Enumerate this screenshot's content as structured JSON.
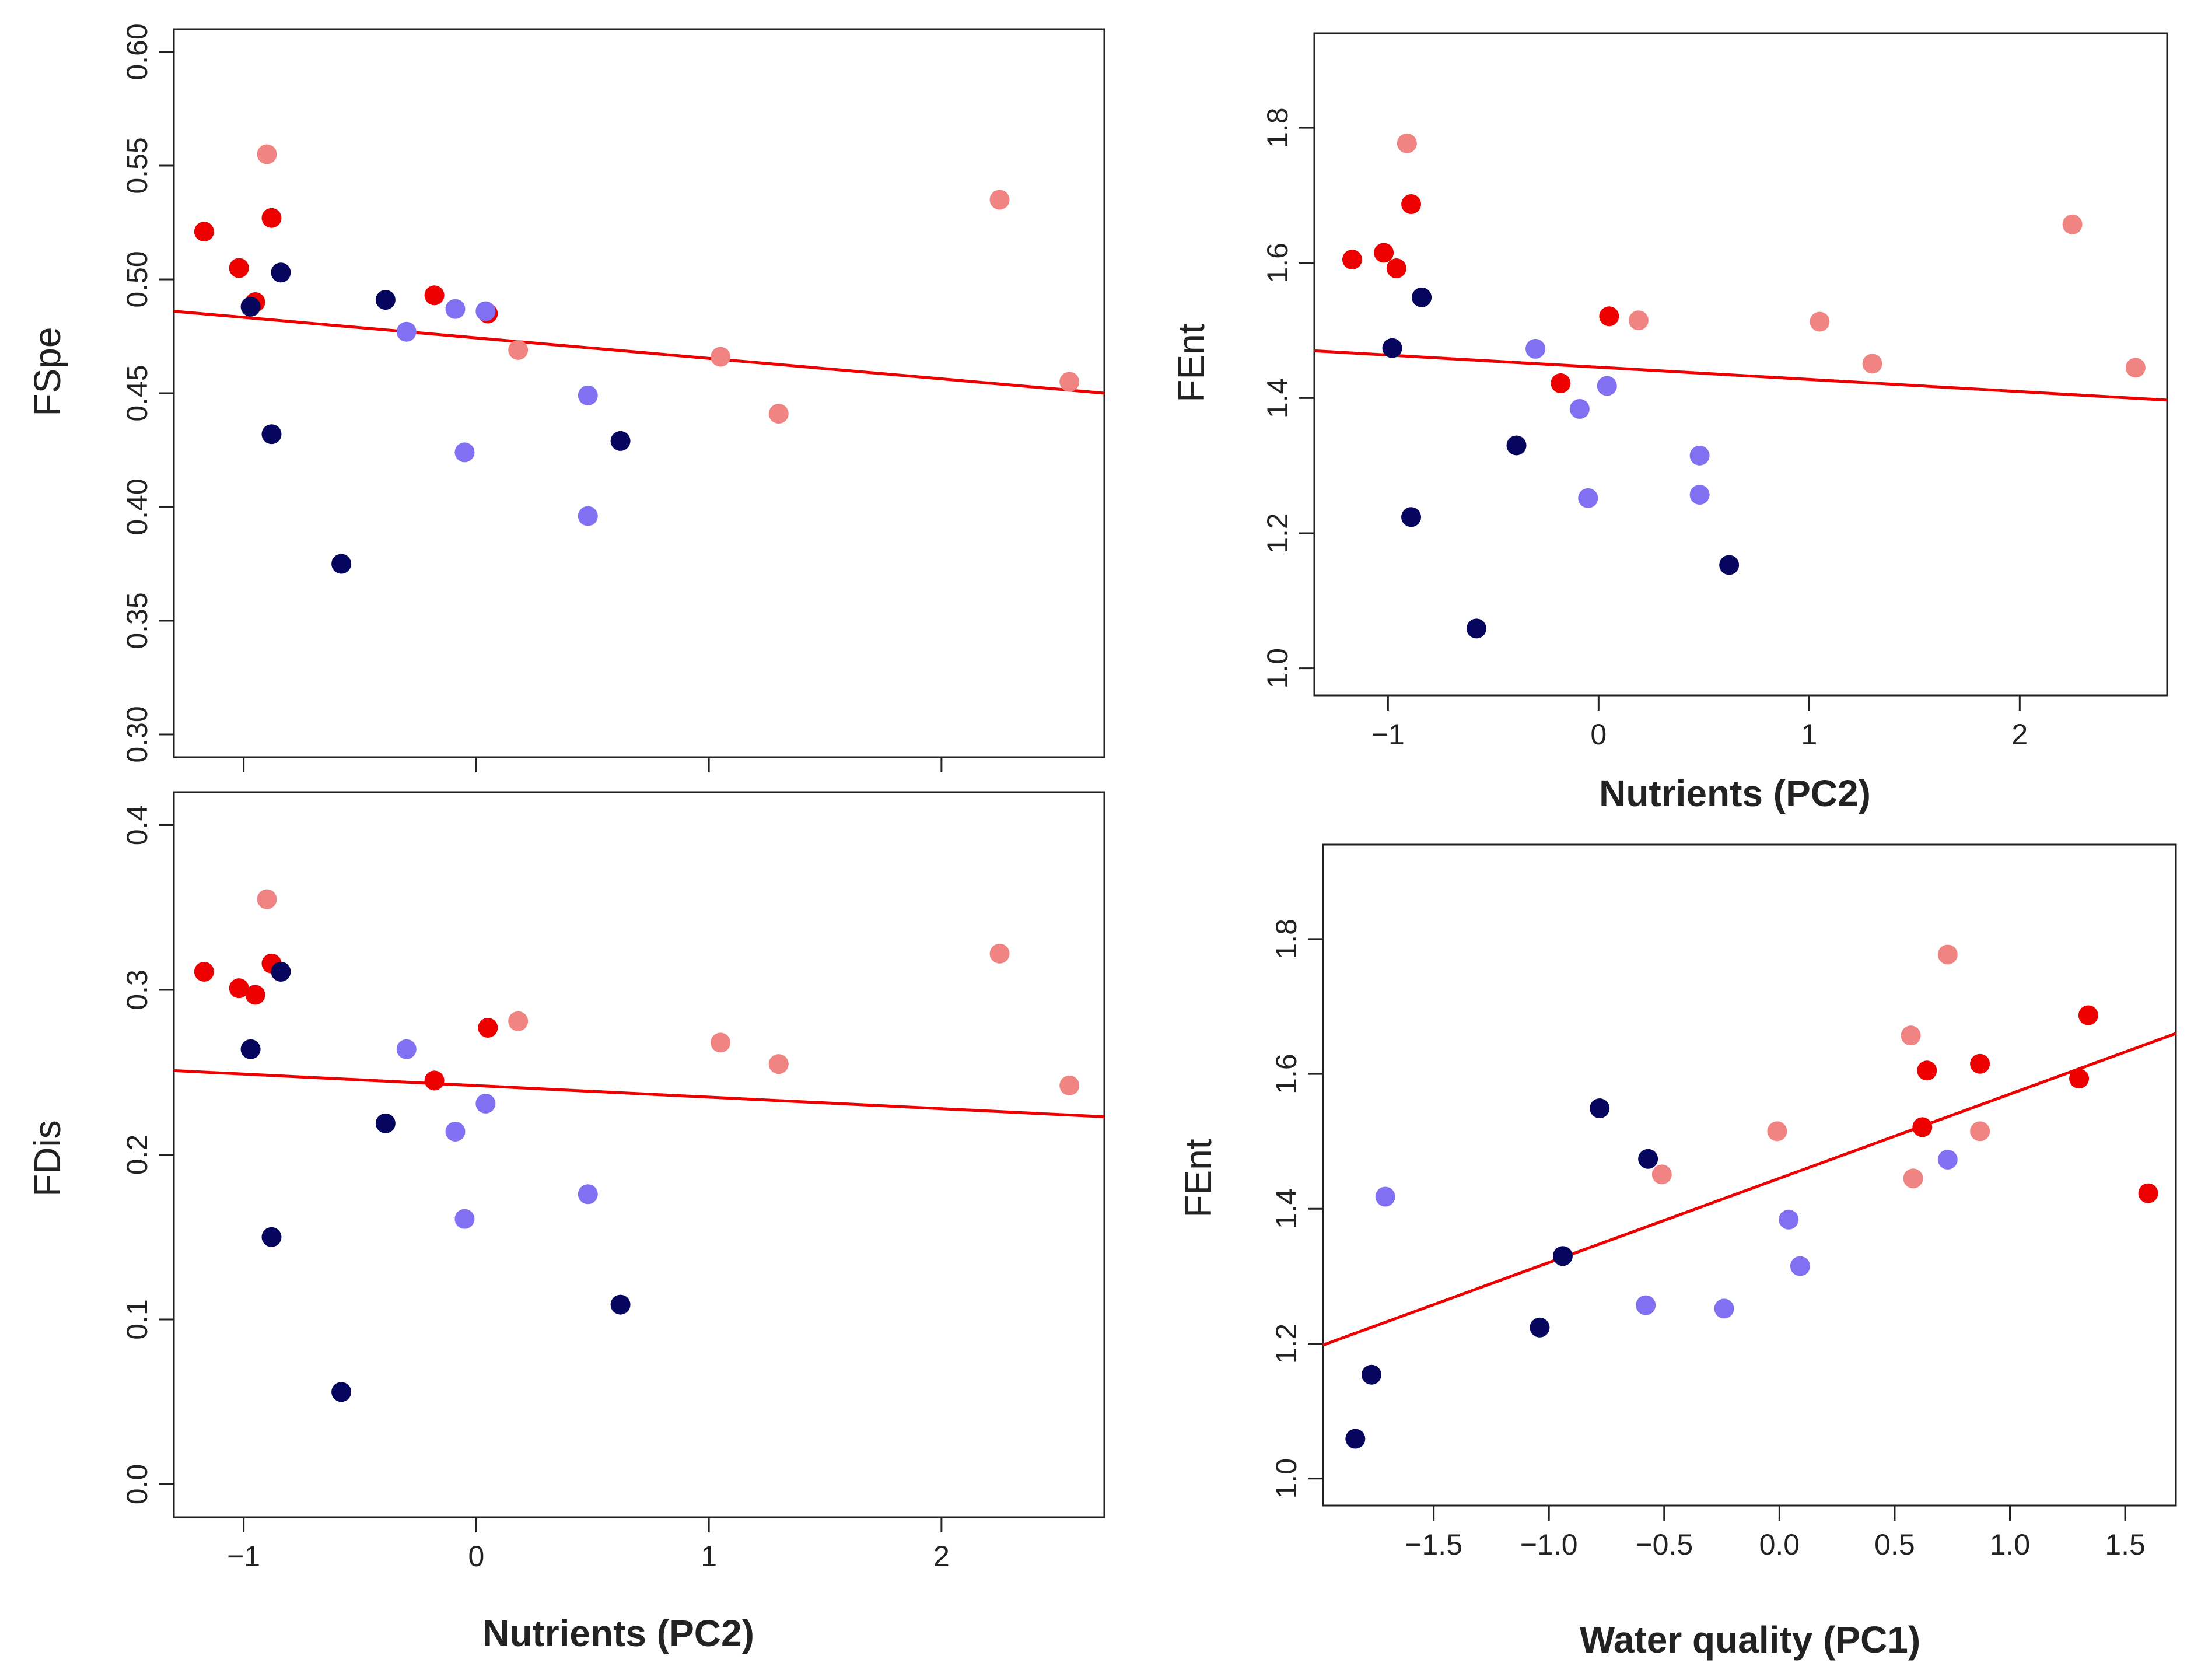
{
  "colors": {
    "red": "#EE0000",
    "pink": "#EF8482",
    "navy": "#06065E",
    "lavender": "#8171F2",
    "line": "#EE0000",
    "frame": "#222222"
  },
  "chart_data": [
    {
      "id": "fspe",
      "type": "scatter",
      "title": "",
      "xlabel": "",
      "ylabel": "FSpe",
      "xlim": [
        -1.3,
        2.7
      ],
      "ylim": [
        0.29,
        0.61
      ],
      "xticks": [
        -1,
        0,
        1,
        2
      ],
      "xtick_labels": [
        "",
        "",
        "",
        ""
      ],
      "yticks": [
        0.3,
        0.35,
        0.4,
        0.45,
        0.5,
        0.55,
        0.6
      ],
      "ytick_labels": [
        "0.30",
        "0.35",
        "0.40",
        "0.45",
        "0.50",
        "0.55",
        "0.60"
      ],
      "trend": {
        "x": [
          -1.3,
          2.7
        ],
        "y": [
          0.486,
          0.45
        ]
      },
      "series": [
        {
          "name": "red",
          "color": "red",
          "points": [
            [
              -1.17,
              0.521
            ],
            [
              -1.02,
              0.505
            ],
            [
              -0.95,
              0.49
            ],
            [
              -0.88,
              0.527
            ],
            [
              -0.18,
              0.493
            ],
            [
              0.05,
              0.485
            ]
          ]
        },
        {
          "name": "pink",
          "color": "pink",
          "points": [
            [
              -0.9,
              0.555
            ],
            [
              0.18,
              0.469
            ],
            [
              1.05,
              0.466
            ],
            [
              1.3,
              0.441
            ],
            [
              2.25,
              0.535
            ],
            [
              2.55,
              0.455
            ]
          ]
        },
        {
          "name": "navy",
          "color": "navy",
          "points": [
            [
              -0.97,
              0.488
            ],
            [
              -0.84,
              0.503
            ],
            [
              -0.88,
              0.432
            ],
            [
              -0.58,
              0.375
            ],
            [
              -0.39,
              0.491
            ],
            [
              0.62,
              0.429
            ]
          ]
        },
        {
          "name": "lavender",
          "color": "lavender",
          "points": [
            [
              -0.3,
              0.477
            ],
            [
              -0.09,
              0.487
            ],
            [
              -0.05,
              0.424
            ],
            [
              0.04,
              0.486
            ],
            [
              0.48,
              0.449
            ],
            [
              0.48,
              0.396
            ]
          ]
        }
      ]
    },
    {
      "id": "fent-pc2",
      "type": "scatter",
      "title": "",
      "xlabel": "Nutrients (PC2)",
      "ylabel": "FEnt",
      "xlim": [
        -1.35,
        2.7
      ],
      "ylim": [
        0.96,
        1.94
      ],
      "xticks": [
        -1,
        0,
        1,
        2
      ],
      "xtick_labels": [
        "−1",
        "0",
        "1",
        "2"
      ],
      "yticks": [
        1.0,
        1.2,
        1.4,
        1.6,
        1.8
      ],
      "ytick_labels": [
        "1.0",
        "1.2",
        "1.4",
        "1.6",
        "1.8"
      ],
      "trend": {
        "x": [
          -1.35,
          2.7
        ],
        "y": [
          1.47,
          1.397
        ]
      },
      "series": [
        {
          "name": "red",
          "color": "red",
          "points": [
            [
              -1.17,
              1.605
            ],
            [
              -1.02,
              1.615
            ],
            [
              -0.96,
              1.592
            ],
            [
              -0.89,
              1.687
            ],
            [
              -0.18,
              1.422
            ],
            [
              0.05,
              1.521
            ]
          ]
        },
        {
          "name": "pink",
          "color": "pink",
          "points": [
            [
              -0.91,
              1.777
            ],
            [
              0.19,
              1.515
            ],
            [
              1.05,
              1.513
            ],
            [
              1.3,
              1.451
            ],
            [
              2.25,
              1.657
            ],
            [
              2.55,
              1.445
            ]
          ]
        },
        {
          "name": "navy",
          "color": "navy",
          "points": [
            [
              -0.98,
              1.474
            ],
            [
              -0.84,
              1.549
            ],
            [
              -0.89,
              1.224
            ],
            [
              -0.58,
              1.059
            ],
            [
              -0.39,
              1.33
            ],
            [
              0.62,
              1.153
            ]
          ]
        },
        {
          "name": "lavender",
          "color": "lavender",
          "points": [
            [
              -0.3,
              1.473
            ],
            [
              -0.09,
              1.384
            ],
            [
              -0.05,
              1.252
            ],
            [
              0.04,
              1.418
            ],
            [
              0.48,
              1.315
            ],
            [
              0.48,
              1.257
            ]
          ]
        }
      ]
    },
    {
      "id": "fdis",
      "type": "scatter",
      "title": "",
      "xlabel": "Nutrients (PC2)",
      "ylabel": "FDis",
      "xlim": [
        -1.3,
        2.7
      ],
      "ylim": [
        -0.02,
        0.42
      ],
      "xticks": [
        -1,
        0,
        1,
        2
      ],
      "xtick_labels": [
        "−1",
        "0",
        "1",
        "2"
      ],
      "yticks": [
        0.0,
        0.1,
        0.2,
        0.3,
        0.4
      ],
      "ytick_labels": [
        "0.0",
        "0.1",
        "0.2",
        "0.3",
        "0.4"
      ],
      "trend": {
        "x": [
          -1.3,
          2.7
        ],
        "y": [
          0.251,
          0.223
        ]
      },
      "series": [
        {
          "name": "red",
          "color": "red",
          "points": [
            [
              -1.17,
              0.311
            ],
            [
              -1.02,
              0.301
            ],
            [
              -0.95,
              0.297
            ],
            [
              -0.88,
              0.316
            ],
            [
              -0.18,
              0.245
            ],
            [
              0.05,
              0.277
            ]
          ]
        },
        {
          "name": "pink",
          "color": "pink",
          "points": [
            [
              -0.9,
              0.355
            ],
            [
              0.18,
              0.281
            ],
            [
              1.05,
              0.268
            ],
            [
              1.3,
              0.255
            ],
            [
              2.25,
              0.322
            ],
            [
              2.55,
              0.242
            ]
          ]
        },
        {
          "name": "navy",
          "color": "navy",
          "points": [
            [
              -0.97,
              0.264
            ],
            [
              -0.84,
              0.311
            ],
            [
              -0.88,
              0.15
            ],
            [
              -0.58,
              0.056
            ],
            [
              -0.39,
              0.219
            ],
            [
              0.62,
              0.109
            ]
          ]
        },
        {
          "name": "lavender",
          "color": "lavender",
          "points": [
            [
              -0.3,
              0.264
            ],
            [
              -0.09,
              0.214
            ],
            [
              -0.05,
              0.161
            ],
            [
              0.04,
              0.231
            ],
            [
              0.48,
              0.176
            ]
          ]
        }
      ]
    },
    {
      "id": "fent-pc1",
      "type": "scatter",
      "title": "",
      "xlabel": "Water quality (PC1)",
      "ylabel": "FEnt",
      "xlim": [
        -1.98,
        1.72
      ],
      "ylim": [
        0.96,
        1.94
      ],
      "xticks": [
        -1.5,
        -1.0,
        -0.5,
        0.0,
        0.5,
        1.0,
        1.5
      ],
      "xtick_labels": [
        "−1.5",
        "−1.0",
        "−0.5",
        "0.0",
        "0.5",
        "1.0",
        "1.5"
      ],
      "yticks": [
        1.0,
        1.2,
        1.4,
        1.6,
        1.8
      ],
      "ytick_labels": [
        "1.0",
        "1.2",
        "1.4",
        "1.6",
        "1.8"
      ],
      "trend": {
        "x": [
          -1.98,
          1.72
        ],
        "y": [
          1.198,
          1.66
        ]
      },
      "series": [
        {
          "name": "red",
          "color": "red",
          "points": [
            [
              0.62,
              1.521
            ],
            [
              0.64,
              1.605
            ],
            [
              0.87,
              1.615
            ],
            [
              1.3,
              1.593
            ],
            [
              1.34,
              1.687
            ],
            [
              1.6,
              1.423
            ]
          ]
        },
        {
          "name": "pink",
          "color": "pink",
          "points": [
            [
              -0.51,
              1.451
            ],
            [
              -0.01,
              1.515
            ],
            [
              0.57,
              1.657
            ],
            [
              0.58,
              1.445
            ],
            [
              0.73,
              1.777
            ],
            [
              0.87,
              1.515
            ]
          ]
        },
        {
          "name": "navy",
          "color": "navy",
          "points": [
            [
              -1.84,
              1.059
            ],
            [
              -1.77,
              1.154
            ],
            [
              -1.04,
              1.224
            ],
            [
              -0.94,
              1.33
            ],
            [
              -0.78,
              1.549
            ],
            [
              -0.57,
              1.474
            ]
          ]
        },
        {
          "name": "lavender",
          "color": "lavender",
          "points": [
            [
              -1.71,
              1.418
            ],
            [
              -0.58,
              1.257
            ],
            [
              -0.24,
              1.252
            ],
            [
              0.04,
              1.384
            ],
            [
              0.09,
              1.315
            ],
            [
              0.73,
              1.473
            ]
          ]
        }
      ]
    }
  ]
}
